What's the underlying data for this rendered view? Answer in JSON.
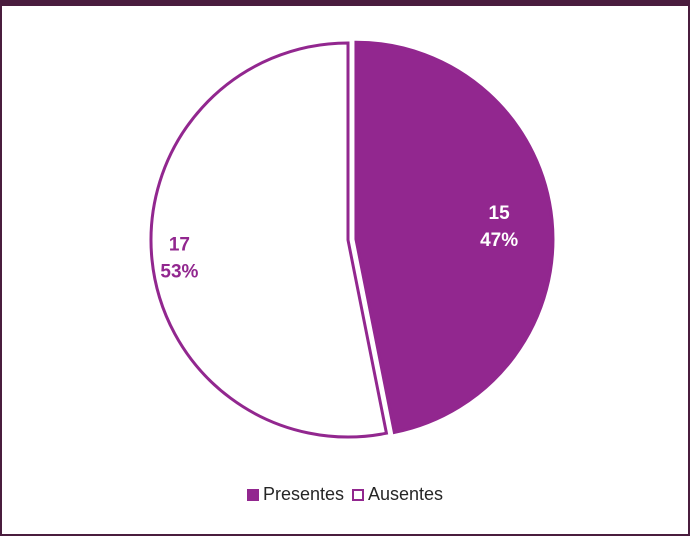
{
  "chart_data": {
    "type": "pie",
    "title": "",
    "categories": [
      "Presentes",
      "Ausentes"
    ],
    "values": [
      15,
      17
    ],
    "percent_labels": [
      "47%",
      "53%"
    ],
    "value_labels": [
      "15",
      "17"
    ],
    "colors": [
      "#92278f",
      "#ffffff"
    ],
    "outline_color": "#92278f",
    "legend": {
      "placement": "bottom",
      "entries": [
        "Presentes",
        "Ausentes"
      ]
    }
  }
}
